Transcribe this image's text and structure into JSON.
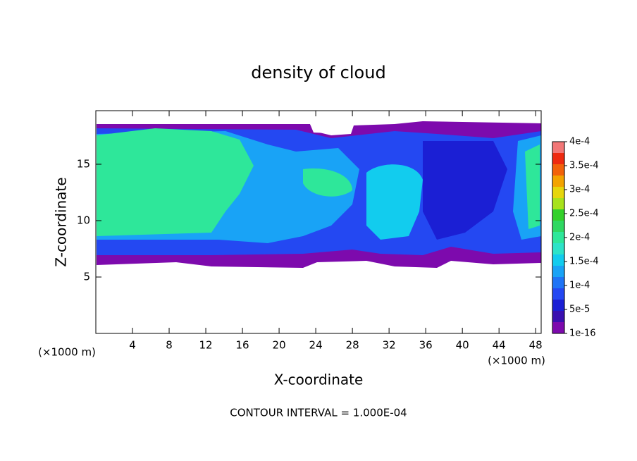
{
  "chart_data": {
    "type": "contour",
    "title": "density of cloud",
    "x_label": "X-coordinate",
    "y_label": "Z-coordinate",
    "x_unit": "(×1000 m)",
    "y_unit": "(×1000 m)",
    "xlim": [
      0,
      48.6
    ],
    "xticks": [
      4,
      8,
      12,
      16,
      20,
      24,
      28,
      32,
      36,
      40,
      44,
      48
    ],
    "ylim": [
      0,
      19.75
    ],
    "yticks": [
      5,
      10,
      15
    ],
    "colorbar": {
      "levels": [
        {
          "value": 1e-16,
          "label": "1e-16"
        },
        {
          "value": 5e-05,
          "label": "5e-5"
        },
        {
          "value": 0.0001,
          "label": "1e-4"
        },
        {
          "value": 0.00015,
          "label": "1.5e-4"
        },
        {
          "value": 0.0002,
          "label": "2e-4"
        },
        {
          "value": 0.00025,
          "label": "2.5e-4"
        },
        {
          "value": 0.0003,
          "label": "3e-4"
        },
        {
          "value": 0.00035,
          "label": "3.5e-4"
        },
        {
          "value": 0.0004,
          "label": "4e-4"
        }
      ],
      "colors": [
        "#7d0aad",
        "#3a10b0",
        "#1b1fd4",
        "#2448f2",
        "#1f74f6",
        "#19a3f6",
        "#12ccee",
        "#2de3c8",
        "#2ee79a",
        "#2fd862",
        "#34d12a",
        "#a8e21c",
        "#e6d60c",
        "#f3a300",
        "#f2620a",
        "#ee2a10",
        "#f27777"
      ]
    },
    "annotation": "CONTOUR INTERVAL = 1.000E-04"
  }
}
